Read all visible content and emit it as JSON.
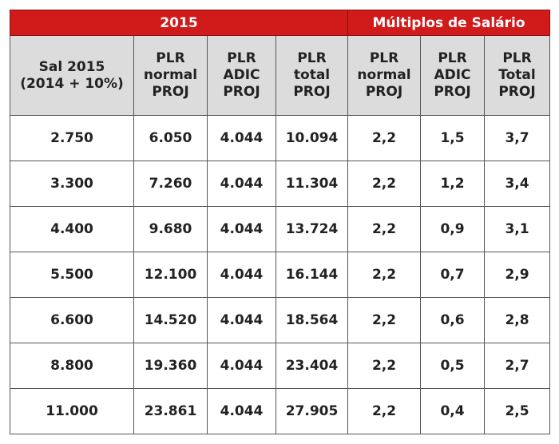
{
  "table": {
    "group_headers": [
      "2015",
      "Múltiplos de Salário"
    ],
    "columns": [
      [
        "Sal 2015",
        "(2014 + 10%)"
      ],
      [
        "PLR",
        "normal",
        "PROJ"
      ],
      [
        "PLR",
        "ADIC",
        "PROJ"
      ],
      [
        "PLR",
        "total",
        "PROJ"
      ],
      [
        "PLR",
        "normal",
        "PROJ"
      ],
      [
        "PLR",
        "ADIC",
        "PROJ"
      ],
      [
        "PLR",
        "Total",
        "PROJ"
      ]
    ],
    "rows": [
      [
        "2.750",
        "6.050",
        "4.044",
        "10.094",
        "2,2",
        "1,5",
        "3,7"
      ],
      [
        "3.300",
        "7.260",
        "4.044",
        "11.304",
        "2,2",
        "1,2",
        "3,4"
      ],
      [
        "4.400",
        "9.680",
        "4.044",
        "13.724",
        "2,2",
        "0,9",
        "3,1"
      ],
      [
        "5.500",
        "12.100",
        "4.044",
        "16.144",
        "2,2",
        "0,7",
        "2,9"
      ],
      [
        "6.600",
        "14.520",
        "4.044",
        "18.564",
        "2,2",
        "0,6",
        "2,8"
      ],
      [
        "8.800",
        "19.360",
        "4.044",
        "23.404",
        "2,2",
        "0,5",
        "2,7"
      ],
      [
        "11.000",
        "23.861",
        "4.044",
        "27.905",
        "2,2",
        "0,4",
        "2,5"
      ]
    ]
  },
  "colors": {
    "header_red": "#d11b1b",
    "header_gray": "#dcdcdc",
    "border": "#555555"
  }
}
